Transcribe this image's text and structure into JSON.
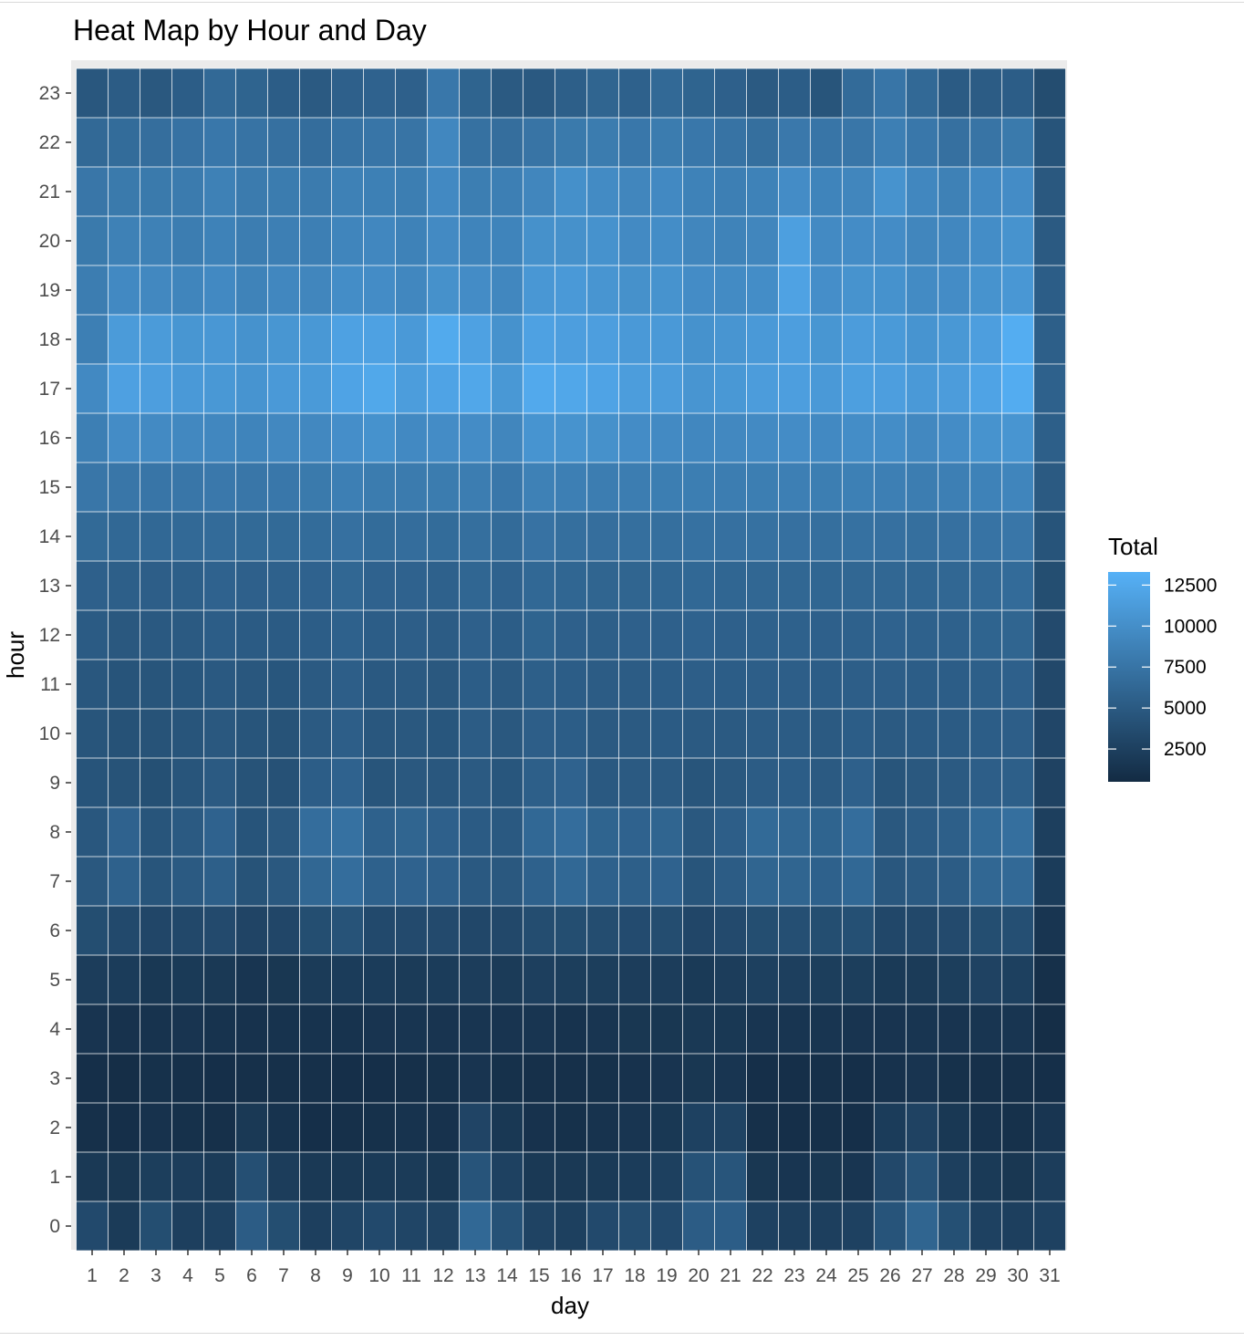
{
  "chart_data": {
    "type": "heatmap",
    "title": "Heat Map by Hour and Day",
    "xlabel": "day",
    "ylabel": "hour",
    "x": [
      1,
      2,
      3,
      4,
      5,
      6,
      7,
      8,
      9,
      10,
      11,
      12,
      13,
      14,
      15,
      16,
      17,
      18,
      19,
      20,
      21,
      22,
      23,
      24,
      25,
      26,
      27,
      28,
      29,
      30,
      31
    ],
    "y": [
      0,
      1,
      2,
      3,
      4,
      5,
      6,
      7,
      8,
      9,
      10,
      11,
      12,
      13,
      14,
      15,
      16,
      17,
      18,
      19,
      20,
      21,
      22,
      23
    ],
    "legend": {
      "title": "Total",
      "breaks": [
        12500,
        10000,
        7500,
        5000,
        2500
      ],
      "range": [
        500,
        13300
      ],
      "low_color": "#132B43",
      "high_color": "#56B1F7",
      "position": "right"
    },
    "panel_background": "#EBEBEB",
    "grid": true,
    "values": [
      [
        3400,
        2000,
        3800,
        2400,
        2600,
        5200,
        3800,
        2400,
        3000,
        3400,
        3000,
        2800,
        6300,
        4200,
        2800,
        2500,
        3400,
        3700,
        3400,
        5200,
        5300,
        2600,
        2400,
        2400,
        2600,
        4400,
        6000,
        4000,
        2600,
        2400,
        2600
      ],
      [
        1800,
        1600,
        2300,
        2200,
        2000,
        3900,
        2200,
        1800,
        1800,
        1900,
        2000,
        1700,
        4400,
        2600,
        1800,
        1800,
        1900,
        2100,
        2500,
        4200,
        4500,
        1600,
        1500,
        1600,
        1500,
        3300,
        4300,
        2400,
        1900,
        1600,
        2200
      ],
      [
        1000,
        900,
        1200,
        1100,
        1000,
        1800,
        1300,
        900,
        1000,
        1100,
        1300,
        1200,
        2900,
        1700,
        1200,
        1100,
        1300,
        1500,
        1700,
        2600,
        2800,
        1000,
        900,
        1000,
        900,
        2100,
        2700,
        1700,
        1300,
        1100,
        1500
      ],
      [
        900,
        800,
        1100,
        1000,
        900,
        1000,
        1000,
        1000,
        900,
        900,
        1000,
        1100,
        1400,
        1100,
        1000,
        1000,
        1100,
        1200,
        1400,
        1600,
        1500,
        900,
        900,
        1000,
        900,
        1200,
        1400,
        1100,
        1000,
        1000,
        900
      ],
      [
        1400,
        1200,
        1300,
        1400,
        1300,
        1200,
        1300,
        1300,
        1300,
        1400,
        1500,
        1400,
        1500,
        1400,
        1500,
        1300,
        1500,
        1600,
        1600,
        1800,
        1700,
        1500,
        1500,
        1500,
        1400,
        1400,
        1500,
        1400,
        1500,
        1500,
        800
      ],
      [
        2200,
        2100,
        1700,
        1900,
        1800,
        1500,
        1600,
        2000,
        2100,
        2100,
        2000,
        2100,
        2200,
        2000,
        2400,
        2300,
        2300,
        2200,
        2200,
        1900,
        2200,
        2500,
        2400,
        2300,
        2300,
        1900,
        2000,
        2300,
        2700,
        2500,
        1000
      ],
      [
        3800,
        3400,
        3100,
        3300,
        3500,
        2900,
        3100,
        3800,
        4300,
        3400,
        3500,
        3500,
        3200,
        3300,
        3700,
        3800,
        3700,
        3600,
        3700,
        3100,
        3500,
        3800,
        3900,
        3800,
        4000,
        3200,
        3300,
        3500,
        3800,
        3900,
        1500
      ],
      [
        4800,
        5700,
        4500,
        5000,
        5500,
        4300,
        4800,
        6200,
        6800,
        5700,
        5800,
        5600,
        4900,
        4800,
        5700,
        6300,
        5700,
        5500,
        5800,
        4500,
        5200,
        6000,
        6000,
        5700,
        6300,
        4700,
        5000,
        5200,
        6200,
        6400,
        2100
      ],
      [
        4700,
        5800,
        4500,
        5000,
        5800,
        4400,
        4800,
        6800,
        7200,
        5700,
        6000,
        5600,
        5100,
        4900,
        6300,
        6800,
        5900,
        5800,
        6000,
        4800,
        5400,
        6500,
        6200,
        5900,
        6800,
        4800,
        5200,
        5500,
        6500,
        7000,
        2400
      ],
      [
        4400,
        4300,
        4000,
        4500,
        5000,
        4300,
        4100,
        5300,
        5800,
        4500,
        4800,
        4700,
        5000,
        4600,
        5500,
        5800,
        4900,
        5000,
        5000,
        4500,
        4800,
        5200,
        5300,
        5000,
        5600,
        4500,
        4800,
        5000,
        5400,
        5500,
        2700
      ],
      [
        4500,
        4200,
        4300,
        4500,
        4800,
        4500,
        4300,
        5000,
        5400,
        4700,
        4800,
        4600,
        5200,
        4800,
        5400,
        5300,
        5000,
        5000,
        5100,
        5000,
        5000,
        5200,
        5200,
        5000,
        5300,
        5000,
        5100,
        5100,
        5300,
        5400,
        3100
      ],
      [
        4700,
        4400,
        4500,
        4600,
        4900,
        4700,
        4600,
        5000,
        5400,
        4900,
        5000,
        4800,
        5300,
        5000,
        5500,
        5300,
        5200,
        5200,
        5300,
        5400,
        5300,
        5400,
        5400,
        5300,
        5400,
        5400,
        5300,
        5300,
        5500,
        5600,
        3300
      ],
      [
        5100,
        4800,
        4900,
        5000,
        5300,
        5100,
        5100,
        5300,
        5700,
        5300,
        5400,
        5200,
        5600,
        5300,
        5900,
        5600,
        5500,
        5600,
        5600,
        5800,
        5600,
        5700,
        5700,
        5600,
        5700,
        5800,
        5700,
        5700,
        5900,
        6000,
        3500
      ],
      [
        5600,
        5500,
        5400,
        5500,
        5800,
        5600,
        5700,
        5800,
        6200,
        5800,
        5800,
        5700,
        6100,
        5800,
        6300,
        6100,
        6000,
        6000,
        6100,
        6300,
        6100,
        6200,
        6200,
        6100,
        6200,
        6200,
        6100,
        6200,
        6400,
        6600,
        3800
      ],
      [
        6500,
        6300,
        6300,
        6400,
        6600,
        6500,
        6500,
        6700,
        7100,
        6700,
        6800,
        6700,
        7000,
        6600,
        7300,
        7000,
        6900,
        7000,
        7000,
        7200,
        7100,
        7200,
        7100,
        7000,
        7200,
        7100,
        7000,
        7100,
        7400,
        7700,
        4400
      ],
      [
        7700,
        7700,
        7600,
        7700,
        7900,
        7700,
        7800,
        8000,
        8500,
        8200,
        8100,
        8200,
        8300,
        7800,
        8700,
        8500,
        8300,
        8300,
        8400,
        8400,
        8300,
        8400,
        8500,
        8400,
        8600,
        8500,
        8300,
        8500,
        8800,
        9100,
        5000
      ],
      [
        8500,
        9800,
        9600,
        9400,
        9300,
        9000,
        9400,
        9400,
        10000,
        10300,
        9500,
        9800,
        9800,
        9200,
        10500,
        10400,
        10200,
        9800,
        9600,
        9300,
        9400,
        9600,
        9800,
        9500,
        9900,
        9900,
        9400,
        9800,
        10400,
        10600,
        5500
      ],
      [
        9500,
        11700,
        11500,
        11000,
        10900,
        10500,
        11000,
        11100,
        12000,
        12400,
        11400,
        12000,
        12300,
        10900,
        12500,
        12300,
        12000,
        11400,
        11300,
        10600,
        10900,
        11300,
        11500,
        11000,
        11600,
        11500,
        11000,
        11300,
        12000,
        12800,
        5700
      ],
      [
        8500,
        11200,
        11200,
        10700,
        10800,
        10300,
        10700,
        10900,
        11800,
        11800,
        11000,
        12600,
        11800,
        10300,
        11800,
        11500,
        11500,
        11000,
        11000,
        10300,
        10600,
        11000,
        11500,
        10700,
        11300,
        11100,
        10500,
        10900,
        11500,
        12900,
        5500
      ],
      [
        8300,
        9500,
        9400,
        9100,
        9500,
        8900,
        9300,
        9200,
        9900,
        9800,
        9300,
        10200,
        9800,
        9300,
        10800,
        11000,
        10600,
        10200,
        10400,
        9800,
        9700,
        9900,
        11900,
        10000,
        10400,
        10300,
        9700,
        9800,
        10400,
        10800,
        5300
      ],
      [
        8000,
        8700,
        8700,
        8300,
        8800,
        8300,
        8500,
        8500,
        9100,
        9300,
        8800,
        9600,
        9000,
        9000,
        10200,
        10200,
        10300,
        9600,
        9900,
        9200,
        8900,
        9200,
        11600,
        9600,
        9800,
        9800,
        9200,
        9300,
        9900,
        10400,
        5000
      ],
      [
        7700,
        8000,
        8000,
        8100,
        8700,
        8100,
        8200,
        8100,
        8700,
        8600,
        8400,
        9500,
        8400,
        8500,
        9200,
        10100,
        9700,
        9200,
        9500,
        8800,
        8500,
        8800,
        9800,
        9000,
        9200,
        10400,
        9300,
        8700,
        9500,
        9800,
        4800
      ],
      [
        6400,
        6700,
        6900,
        7300,
        7800,
        7400,
        7100,
        6800,
        7400,
        7600,
        7500,
        9300,
        7200,
        6900,
        7500,
        8000,
        8200,
        7800,
        8200,
        7800,
        7400,
        7000,
        7900,
        7600,
        7700,
        8500,
        7800,
        7100,
        7500,
        8000,
        4400
      ],
      [
        4700,
        5200,
        4800,
        5300,
        6400,
        5900,
        5300,
        5000,
        5600,
        5800,
        5600,
        7800,
        5900,
        5000,
        4900,
        5500,
        6000,
        5700,
        6400,
        5900,
        5600,
        5000,
        5300,
        4500,
        6600,
        7600,
        6400,
        5100,
        5200,
        5300,
        3700
      ]
    ]
  }
}
